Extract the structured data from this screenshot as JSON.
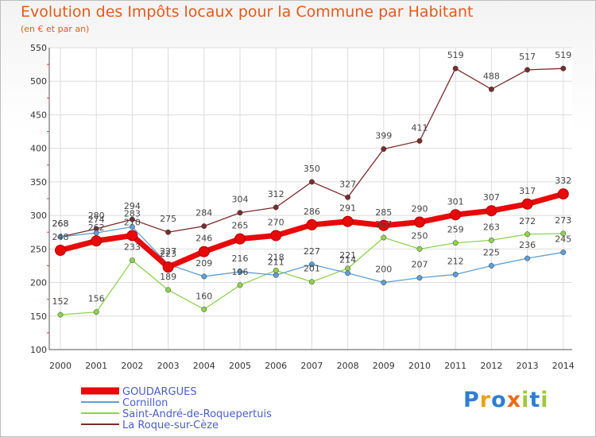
{
  "chart_data": {
    "type": "line",
    "title": "Evolution des Impôts locaux pour la Commune par Habitant",
    "subtitle": "(en € et par an)",
    "categories": [
      "2000",
      "2001",
      "2002",
      "2003",
      "2004",
      "2005",
      "2006",
      "2007",
      "2008",
      "2009",
      "2010",
      "2011",
      "2012",
      "2013",
      "2014"
    ],
    "ylim": [
      100,
      550
    ],
    "yticks": [
      100,
      150,
      200,
      250,
      300,
      350,
      400,
      450,
      500,
      550
    ],
    "series": [
      {
        "name": "GOUDARGUES",
        "color": "#e8090b",
        "values": [
          248,
          262,
          270,
          223,
          246,
          265,
          270,
          286,
          291,
          285,
          290,
          301,
          307,
          317,
          332
        ]
      },
      {
        "name": "Cornillon",
        "color": "#5f9fd4",
        "values": [
          268,
          274,
          283,
          227,
          209,
          216,
          211,
          227,
          214,
          200,
          207,
          212,
          225,
          236,
          245
        ]
      },
      {
        "name": "Saint-André-de-Roquepertuis",
        "color": "#8fd24f",
        "values": [
          152,
          156,
          233,
          189,
          160,
          196,
          218,
          201,
          221,
          267,
          250,
          259,
          263,
          272,
          273
        ]
      },
      {
        "name": "La Roque-sur-Cèze",
        "color": "#7a2c2c",
        "values": [
          268,
          280,
          294,
          275,
          284,
          304,
          312,
          350,
          327,
          399,
          411,
          519,
          488,
          517,
          519
        ]
      }
    ]
  },
  "logo": {
    "text": "Proxiti"
  }
}
